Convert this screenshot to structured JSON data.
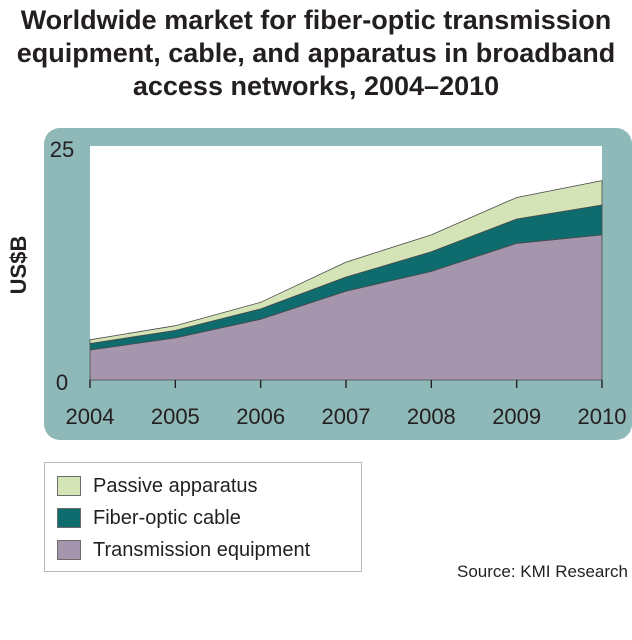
{
  "chart_data": {
    "type": "area",
    "stacked": true,
    "title_lines": [
      "Worldwide market for fiber-optic transmission",
      "equipment, cable, and apparatus in broadband",
      "access networks, 2004–2010"
    ],
    "ylabel": "US$B",
    "xlabel": "",
    "ylim": [
      0,
      25
    ],
    "y_ticks": [
      "0",
      "25"
    ],
    "grid": false,
    "legend_position": "bottom-left",
    "categories": [
      "2004",
      "2005",
      "2006",
      "2007",
      "2008",
      "2009",
      "2010"
    ],
    "series": [
      {
        "name": "Transmission equipment",
        "values": [
          3.2,
          4.5,
          6.5,
          9.5,
          11.6,
          14.6,
          15.5
        ]
      },
      {
        "name": "Fiber-optic cable",
        "values": [
          0.7,
          0.8,
          1.1,
          1.5,
          2.1,
          2.6,
          3.2
        ]
      },
      {
        "name": "Passive apparatus",
        "values": [
          0.4,
          0.5,
          0.7,
          1.6,
          1.8,
          2.3,
          2.6
        ]
      }
    ],
    "legend": [
      {
        "label": "Passive apparatus",
        "color": "#d5e4b6"
      },
      {
        "label": "Fiber-optic cable",
        "color": "#0e6b6e"
      },
      {
        "label": "Transmission equipment",
        "color": "#a596ad"
      }
    ],
    "source": "Source: KMI Research"
  },
  "colors": {
    "panel_background": "#8fb8b8",
    "plot_background": "#ffffff",
    "transmission_equipment": "#a596ad",
    "fiber_optic_cable": "#0e6b6e",
    "passive_apparatus": "#d5e4b6"
  }
}
